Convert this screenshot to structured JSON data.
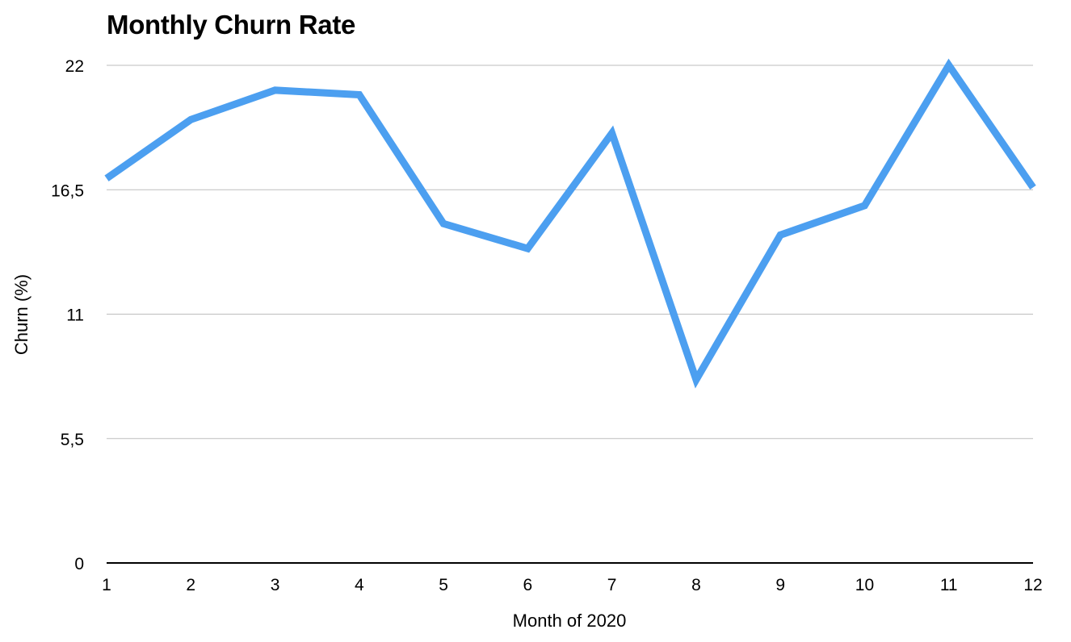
{
  "chart_data": {
    "type": "line",
    "title": "Monthly Churn Rate",
    "xlabel": "Month of 2020",
    "ylabel": "Churn (%)",
    "x": [
      1,
      2,
      3,
      4,
      5,
      6,
      7,
      8,
      9,
      10,
      11,
      12
    ],
    "x_tick_labels": [
      "1",
      "2",
      "3",
      "4",
      "5",
      "6",
      "7",
      "8",
      "9",
      "10",
      "11",
      "12"
    ],
    "y_ticks": [
      0,
      5.5,
      11,
      16.5,
      22
    ],
    "y_tick_labels": [
      "0",
      "5,5",
      "11",
      "16,5",
      "22"
    ],
    "ylim": [
      0,
      22
    ],
    "grid": true,
    "series": [
      {
        "values": [
          17.0,
          19.6,
          20.9,
          20.7,
          15.0,
          13.9,
          19.0,
          8.1,
          14.5,
          15.8,
          22.0,
          16.6
        ],
        "color": "#4c9ff0"
      }
    ],
    "colors": {
      "line": "#4c9ff0",
      "grid": "#bdbdbd",
      "axis": "#000000",
      "text": "#000000"
    }
  }
}
